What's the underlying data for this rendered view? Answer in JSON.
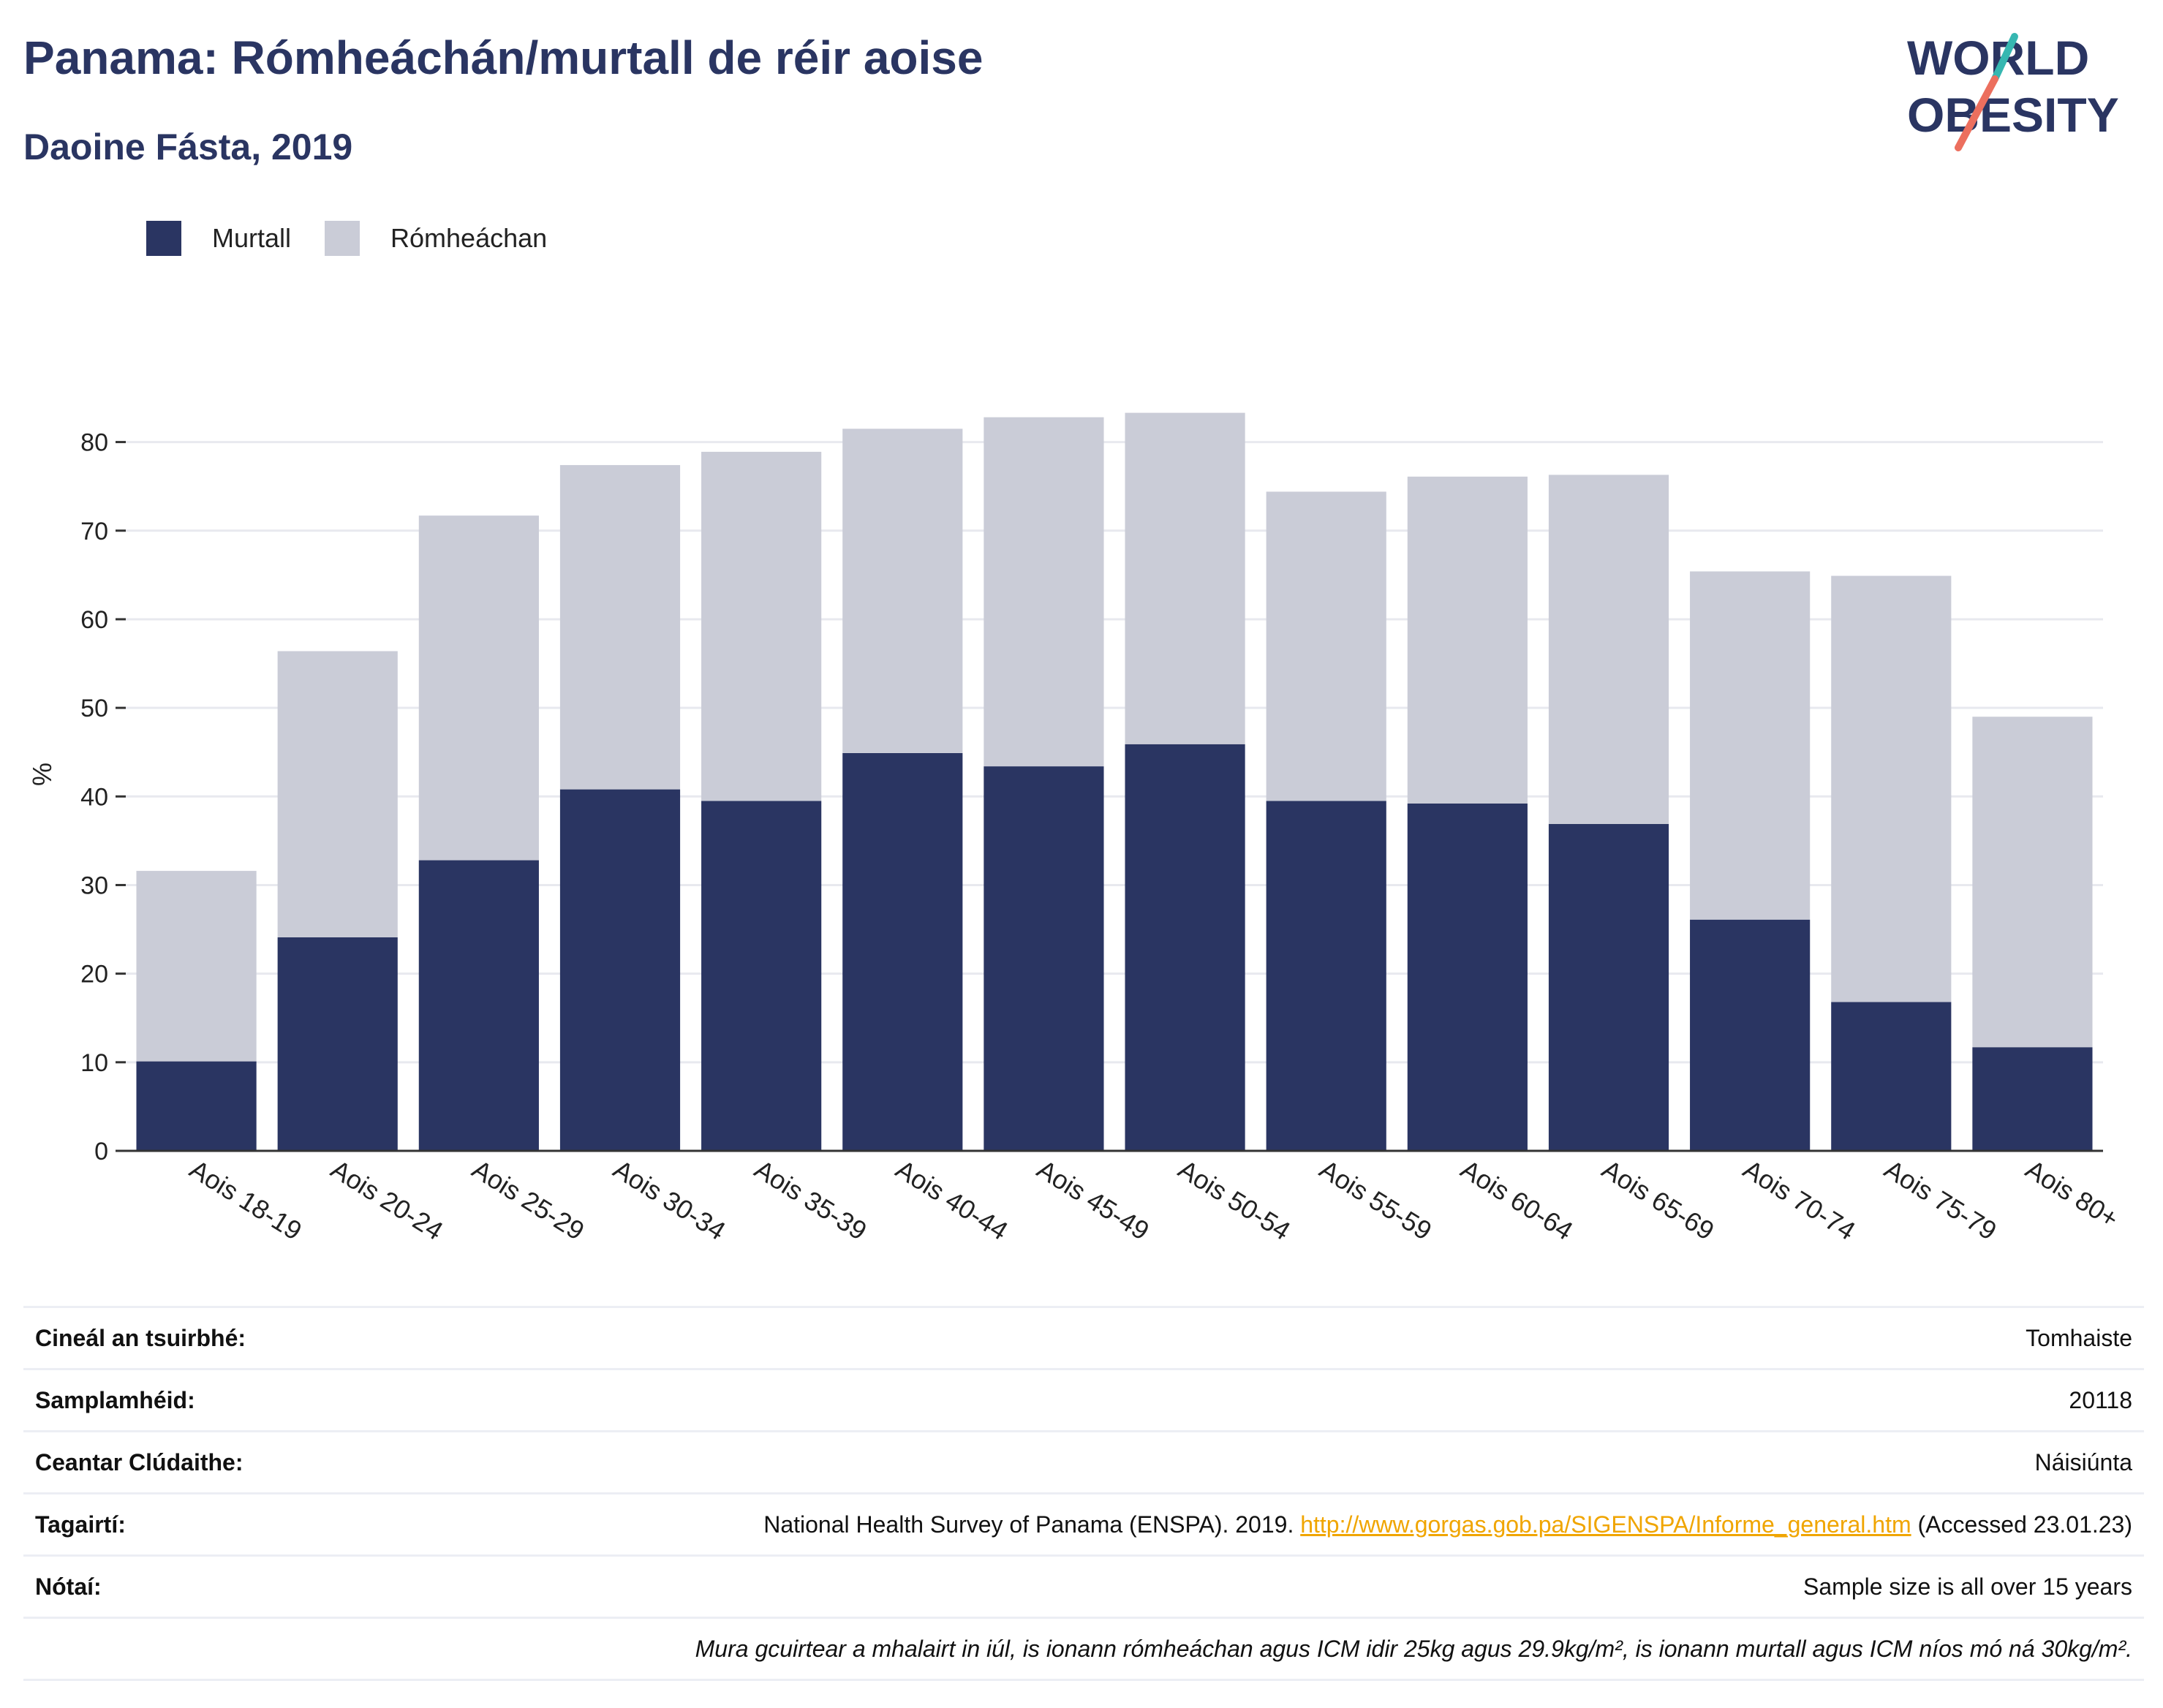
{
  "header": {
    "title": "Panama: Rómheáchán/murtall de réir aoise",
    "subtitle": "Daoine Fásta, 2019"
  },
  "logo": {
    "line1": "WORLD",
    "line2": "OBESITY"
  },
  "colors": {
    "obesity": "#2a3562",
    "overweight": "#caccd7",
    "title": "#2a3562",
    "link": "#f0a500"
  },
  "chart_data": {
    "type": "bar",
    "stacked": true,
    "ylabel": "%",
    "xlabel": "",
    "ylim": [
      0,
      85
    ],
    "yticks": [
      0,
      10,
      20,
      30,
      40,
      50,
      60,
      70,
      80
    ],
    "grid": true,
    "legend_position": "top-left",
    "categories": [
      "Aois 18-19",
      "Aois 20-24",
      "Aois 25-29",
      "Aois 30-34",
      "Aois 35-39",
      "Aois 40-44",
      "Aois 45-49",
      "Aois 50-54",
      "Aois 55-59",
      "Aois 60-64",
      "Aois 65-69",
      "Aois 70-74",
      "Aois 75-79",
      "Aois 80+"
    ],
    "series": [
      {
        "name": "Murtall",
        "values": [
          10.1,
          24.1,
          32.8,
          40.8,
          39.5,
          44.9,
          43.4,
          45.9,
          39.5,
          39.2,
          36.9,
          26.1,
          16.8,
          11.7
        ]
      },
      {
        "name": "Rómheáchan",
        "values": [
          21.5,
          32.3,
          38.9,
          36.6,
          39.4,
          36.6,
          39.4,
          37.4,
          34.9,
          36.9,
          39.4,
          39.3,
          48.1,
          37.3
        ]
      }
    ]
  },
  "info": {
    "survey_type_label": "Cineál an tsuirbhé:",
    "survey_type_value": "Tomhaiste",
    "sample_label": "Samplamhéid:",
    "sample_value": "20118",
    "area_label": "Ceantar Clúdaithe:",
    "area_value": "Náisiúnta",
    "ref_label": "Tagairtí:",
    "ref_prefix": "National Health Survey of Panama (ENSPA). 2019. ",
    "ref_link": "http://www.gorgas.gob.pa/SIGENSPA/Informe_general.htm",
    "ref_suffix": " (Accessed 23.01.23)",
    "notes_label": "Nótaí:",
    "notes_value": "Sample size is all over 15 years",
    "footnote": "Mura gcuirtear a mhalairt in iúl, is ionann rómheáchan agus ICM idir 25kg agus 29.9kg/m², is ionann murtall agus ICM níos mó ná 30kg/m²."
  }
}
